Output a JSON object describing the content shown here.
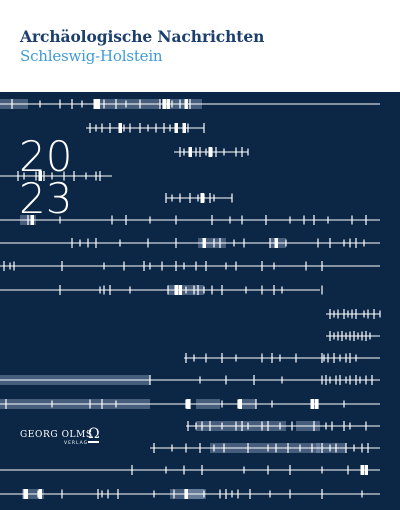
{
  "header": {
    "title": "Archäologische Nachrichten",
    "subtitle": "Schleswig-Holstein"
  },
  "cover": {
    "year_top": "20",
    "year_bottom": "23",
    "background_color": "#0c2746",
    "line_color": "#ffffff",
    "highlight_color": "#8ea2bd"
  },
  "publisher": {
    "name": "GEORG OLMS",
    "logo_glyph": "Ω",
    "imprint": "VERLAG"
  }
}
